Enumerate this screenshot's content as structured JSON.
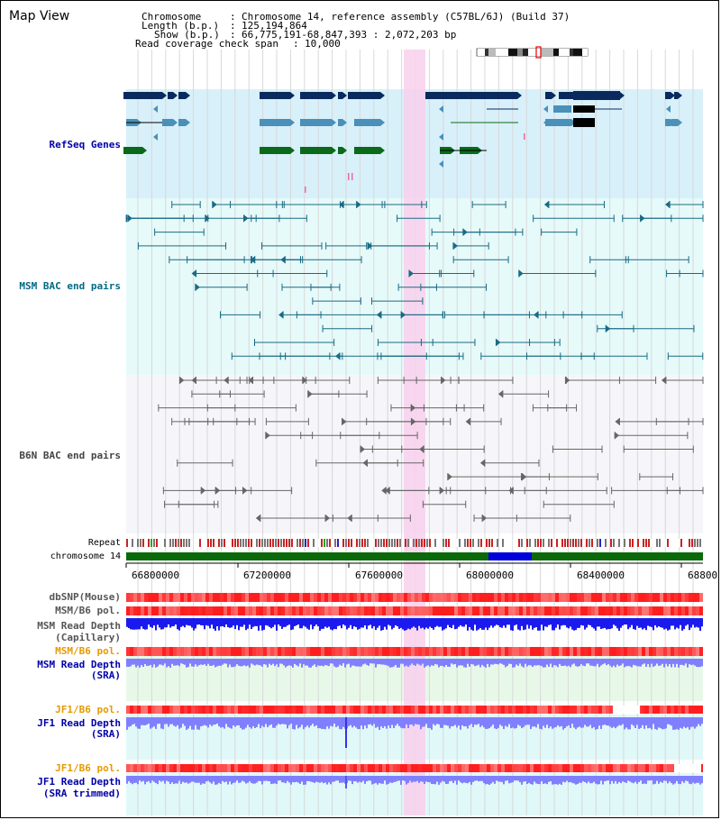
{
  "window": {
    "title": "Map View"
  },
  "header": {
    "chromosome_label": "Chromosome",
    "chromosome_value": "Chromosome 14, reference assembly (C57BL/6J) (Build 37)",
    "length_label": "Length (b.p.)",
    "length_value": "125,194,864",
    "show_label": "Show (b.p.)",
    "show_value": "66,775,191-68,847,393 : 2,072,203 bp",
    "coverage_label": "Read coverage check span",
    "coverage_value": "10,000"
  },
  "tracks": {
    "refseq": "RefSeq Genes",
    "msm_bac": "MSM BAC end pairs",
    "b6n_bac": "B6N BAC end pairs",
    "repeat": "Repeat",
    "chromosome": "chromosome 14",
    "dbsnp": "dbSNP(Mouse)",
    "msm_pol": "MSM/B6 pol.",
    "msm_read_cap_1": "MSM Read Depth",
    "msm_read_cap_2": "(Capillary)",
    "msm_pol_2": "MSM/B6 pol.",
    "msm_read_sra_1": "MSM Read Depth",
    "msm_read_sra_2": "(SRA)",
    "jf1_pol": "JF1/B6 pol.",
    "jf1_read_1": "JF1 Read Depth",
    "jf1_read_2": "(SRA)",
    "jf1_pol_2": "JF1/B6 pol.",
    "jf1_trim_1": "JF1 Read Depth",
    "jf1_trim_2": "(SRA trimmed)"
  },
  "axis": {
    "ticks": [
      "66800000",
      "67200000",
      "67600000",
      "68000000",
      "68400000",
      "68800"
    ]
  },
  "colors": {
    "refseq_bg": "#d8f0fa",
    "msm_bac_bg": "#e6fafa",
    "b6n_bg": "#f6f6fa",
    "highlight": "#f8d0ec",
    "gene_dark": "#0a2a5e",
    "gene_mid": "#4a90b8",
    "gene_green": "#0a6a1a",
    "bac_teal": "#1a6a84",
    "bac_grey": "#666666",
    "chrom_green": "#0a6a0a",
    "chrom_blue": "#0000dd",
    "depth_blue": "#1a1aee",
    "depth_light": "#8080ff"
  }
}
